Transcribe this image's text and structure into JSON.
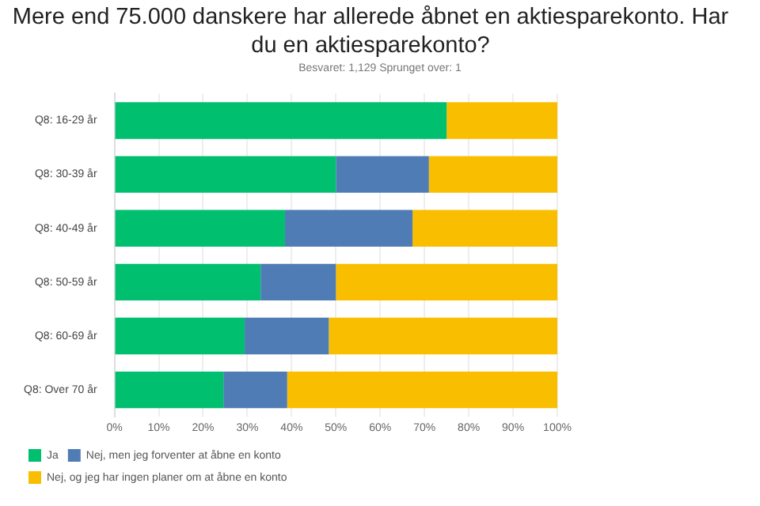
{
  "chart_data": {
    "type": "bar",
    "orientation": "horizontal",
    "stacked": true,
    "title": "Mere end 75.000 danskere har allerede åbnet en aktiesparekonto. Har du en aktiesparekonto?",
    "subtitle": "Besvaret: 1,129     Sprunget over: 1",
    "categories": [
      "Q8: 16-29 år",
      "Q8: 30-39 år",
      "Q8: 40-49 år",
      "Q8: 50-59 år",
      "Q8: 60-69 år",
      "Q8: Over 70 år"
    ],
    "series": [
      {
        "name": "Ja",
        "color": "#00bf6f",
        "values": [
          75,
          50,
          38.5,
          33,
          29.4,
          24.6
        ]
      },
      {
        "name": "Nej, men jeg forventer at åbne en konto",
        "color": "#507cb6",
        "values": [
          0,
          21,
          28.8,
          17,
          19,
          14.4
        ]
      },
      {
        "name": "Nej, og jeg har ingen planer om at åbne en konto",
        "color": "#f9be00",
        "values": [
          25,
          29,
          32.7,
          50,
          51.6,
          61
        ]
      }
    ],
    "xlim": [
      0,
      100
    ],
    "xticks": [
      {
        "value": 0,
        "label": "0%"
      },
      {
        "value": 10,
        "label": "10%"
      },
      {
        "value": 20,
        "label": "20%"
      },
      {
        "value": 30,
        "label": "30%"
      },
      {
        "value": 40,
        "label": "40%"
      },
      {
        "value": 50,
        "label": "50%"
      },
      {
        "value": 60,
        "label": "60%"
      },
      {
        "value": 70,
        "label": "70%"
      },
      {
        "value": 80,
        "label": "80%"
      },
      {
        "value": 90,
        "label": "90%"
      },
      {
        "value": 100,
        "label": "100%"
      }
    ],
    "grid": "x",
    "legend": "bottom left"
  }
}
